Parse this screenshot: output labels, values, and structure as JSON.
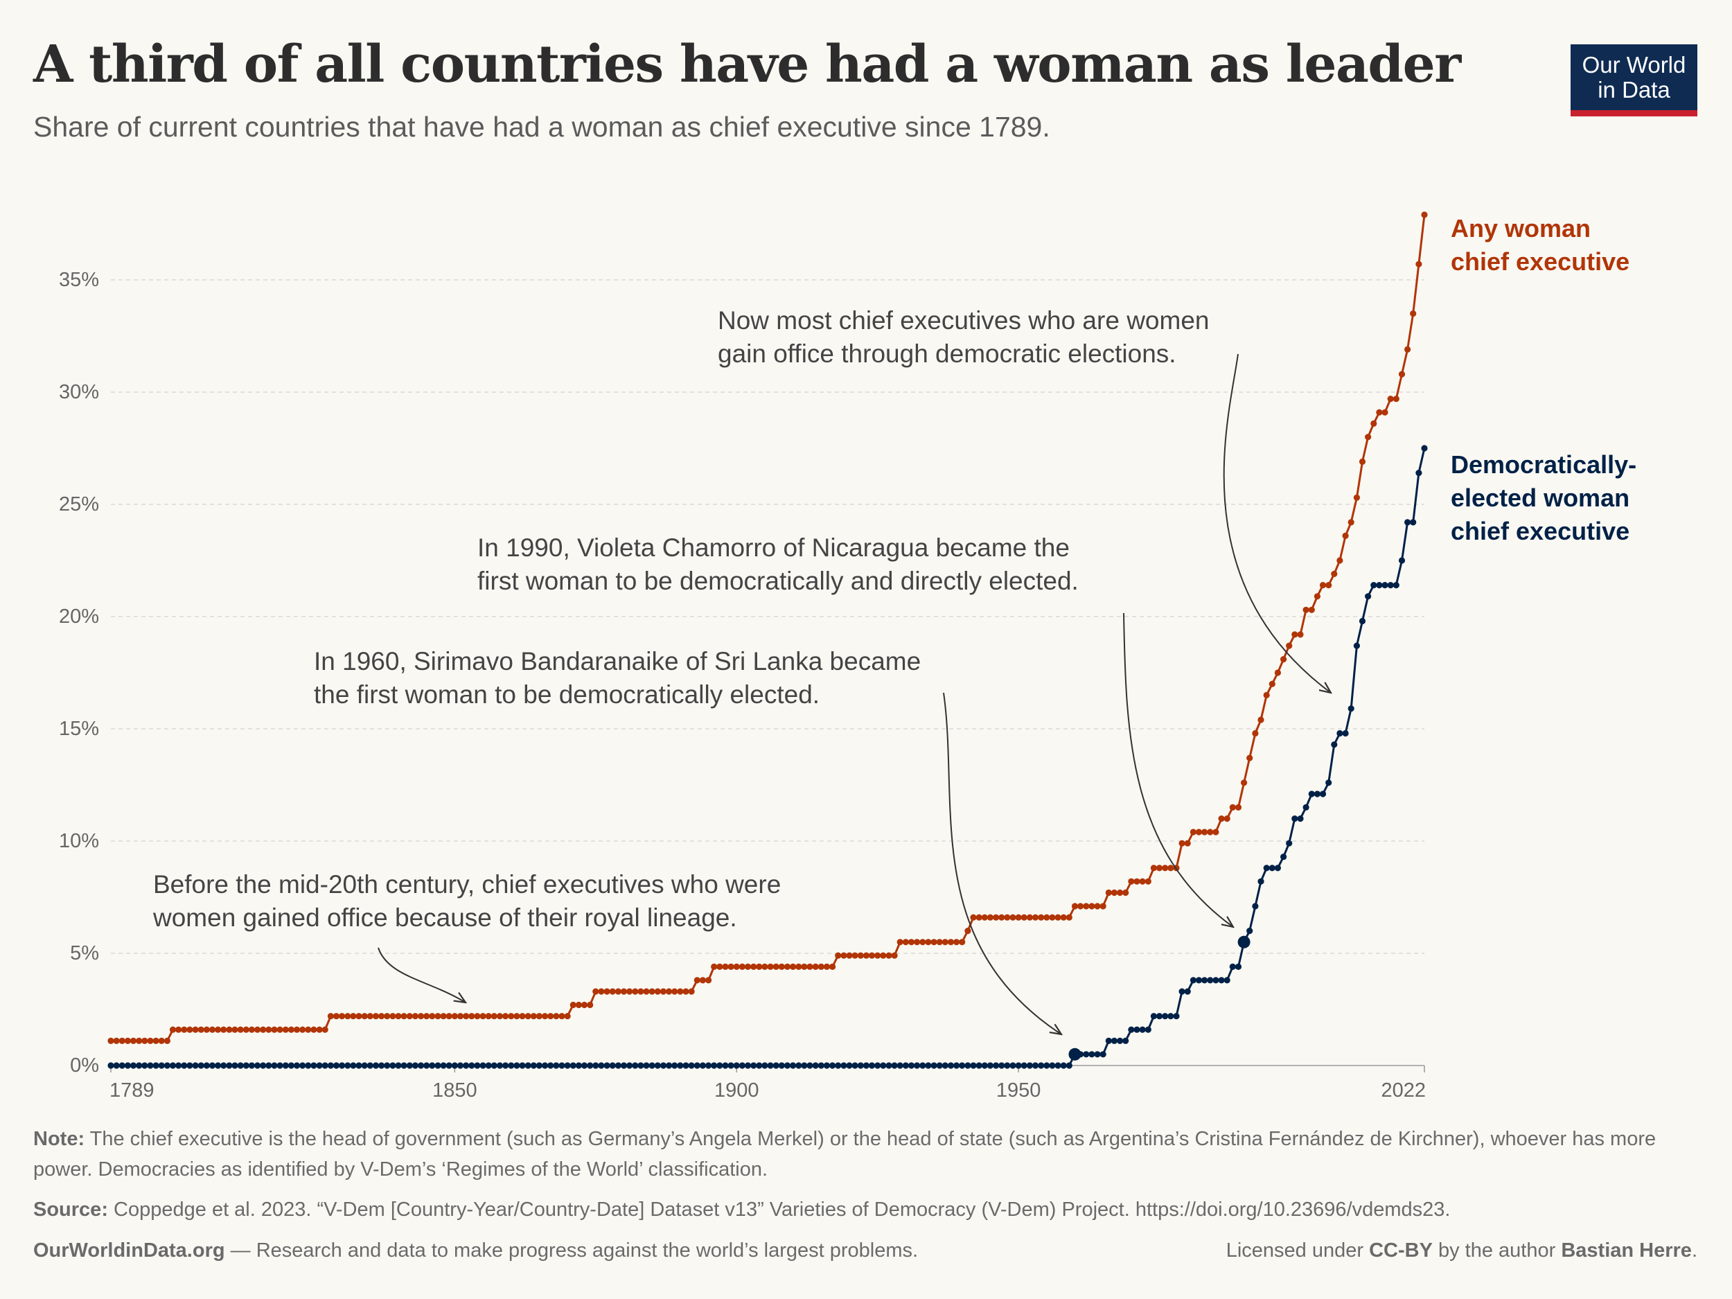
{
  "header": {
    "title": "A third of all countries have had a woman as leader",
    "subtitle": "Share of current countries that have had a woman as chief executive since 1789.",
    "logo_line1": "Our World",
    "logo_line2": "in Data"
  },
  "chart_data": {
    "type": "line",
    "title": "A third of all countries have had a woman as leader",
    "subtitle": "Share of current countries that have had a woman as chief executive since 1789.",
    "xlim": [
      1789,
      2022
    ],
    "ylim": [
      0,
      38
    ],
    "x_ticks": [
      1789,
      1850,
      1900,
      1950,
      2022
    ],
    "y_ticks": [
      0,
      5,
      10,
      15,
      20,
      25,
      30,
      35
    ],
    "y_tick_labels": [
      "0%",
      "5%",
      "10%",
      "15%",
      "20%",
      "25%",
      "30%",
      "35%"
    ],
    "grid": "horizontal dashed",
    "legend": "line-end labels, right",
    "series": [
      {
        "name": "Any woman chief executive",
        "label_lines": [
          "Any woman",
          "chief executive"
        ],
        "color": "#b13507",
        "steps": [
          [
            1789,
            1.1
          ],
          [
            1800,
            1.6
          ],
          [
            1828,
            2.2
          ],
          [
            1871,
            2.7
          ],
          [
            1875,
            3.3
          ],
          [
            1893,
            3.8
          ],
          [
            1896,
            4.4
          ],
          [
            1918,
            4.9
          ],
          [
            1929,
            5.5
          ],
          [
            1941,
            6.0
          ],
          [
            1942,
            6.6
          ],
          [
            1960,
            7.1
          ],
          [
            1966,
            7.7
          ],
          [
            1970,
            8.2
          ],
          [
            1974,
            8.8
          ],
          [
            1979,
            9.9
          ],
          [
            1981,
            10.4
          ],
          [
            1986,
            11.0
          ],
          [
            1988,
            11.5
          ],
          [
            1990,
            12.6
          ],
          [
            1991,
            13.7
          ],
          [
            1992,
            14.8
          ],
          [
            1993,
            15.4
          ],
          [
            1994,
            16.5
          ],
          [
            1995,
            17.0
          ],
          [
            1996,
            17.5
          ],
          [
            1997,
            18.1
          ],
          [
            1998,
            18.7
          ],
          [
            1999,
            19.2
          ],
          [
            2001,
            20.3
          ],
          [
            2003,
            20.9
          ],
          [
            2004,
            21.4
          ],
          [
            2006,
            21.9
          ],
          [
            2007,
            22.5
          ],
          [
            2008,
            23.6
          ],
          [
            2009,
            24.2
          ],
          [
            2010,
            25.3
          ],
          [
            2011,
            26.9
          ],
          [
            2012,
            28.0
          ],
          [
            2013,
            28.6
          ],
          [
            2014,
            29.1
          ],
          [
            2016,
            29.7
          ],
          [
            2018,
            30.8
          ],
          [
            2019,
            31.9
          ],
          [
            2020,
            33.5
          ],
          [
            2021,
            35.7
          ],
          [
            2022,
            37.9
          ]
        ]
      },
      {
        "name": "Democratically-elected woman chief executive",
        "label_lines": [
          "Democratically-",
          "elected woman",
          "chief executive"
        ],
        "color": "#002147",
        "steps": [
          [
            1789,
            0.0
          ],
          [
            1960,
            0.5
          ],
          [
            1966,
            1.1
          ],
          [
            1970,
            1.6
          ],
          [
            1974,
            2.2
          ],
          [
            1979,
            3.3
          ],
          [
            1981,
            3.8
          ],
          [
            1988,
            4.4
          ],
          [
            1990,
            5.5
          ],
          [
            1991,
            6.0
          ],
          [
            1992,
            7.1
          ],
          [
            1993,
            8.2
          ],
          [
            1994,
            8.8
          ],
          [
            1997,
            9.3
          ],
          [
            1998,
            9.9
          ],
          [
            1999,
            11.0
          ],
          [
            2001,
            11.5
          ],
          [
            2002,
            12.1
          ],
          [
            2005,
            12.6
          ],
          [
            2006,
            14.3
          ],
          [
            2007,
            14.8
          ],
          [
            2009,
            15.9
          ],
          [
            2010,
            18.7
          ],
          [
            2011,
            19.8
          ],
          [
            2012,
            20.9
          ],
          [
            2013,
            21.4
          ],
          [
            2018,
            22.5
          ],
          [
            2019,
            24.2
          ],
          [
            2021,
            26.4
          ],
          [
            2022,
            27.5
          ]
        ],
        "highlighted_points": [
          [
            1960,
            0.5
          ],
          [
            1990,
            5.5
          ]
        ]
      }
    ],
    "annotations": [
      {
        "id": "royal",
        "lines": [
          "Before the mid-20th century, chief executives who were",
          "women gained office because of their royal lineage."
        ]
      },
      {
        "id": "y1960",
        "lines": [
          "In 1960, Sirimavo Bandaranaike of Sri Lanka became",
          "the first woman to be democratically elected."
        ]
      },
      {
        "id": "y1990",
        "lines": [
          "In 1990, Violeta Chamorro of Nicaragua became the",
          "first woman to be democratically and directly elected."
        ]
      },
      {
        "id": "now",
        "lines": [
          "Now most chief executives who are women",
          "gain office through democratic elections."
        ]
      }
    ]
  },
  "footer": {
    "note_label": "Note:",
    "note_text": " The chief executive is the head of government (such as Germany’s Angela Merkel) or the head of state (such as Argentina’s Cristina Fernández de Kirchner), whoever has more power. Democracies as identified by V-Dem’s ‘Regimes of the World’ classification.",
    "source_label": "Source:",
    "source_text": " Coppedge et al. 2023. “V-Dem [Country-Year/Country-Date] Dataset v13” Varieties of Democracy (V-Dem) Project. https://doi.org/10.23696/vdemds23.",
    "owid_site": "OurWorldinData.org",
    "owid_tagline": " — Research and data to make progress against the world’s largest problems.",
    "license_prefix": "Licensed under ",
    "license_name": "CC-BY",
    "license_mid": " by the author ",
    "license_author": "Bastian Herre",
    "license_end": "."
  }
}
